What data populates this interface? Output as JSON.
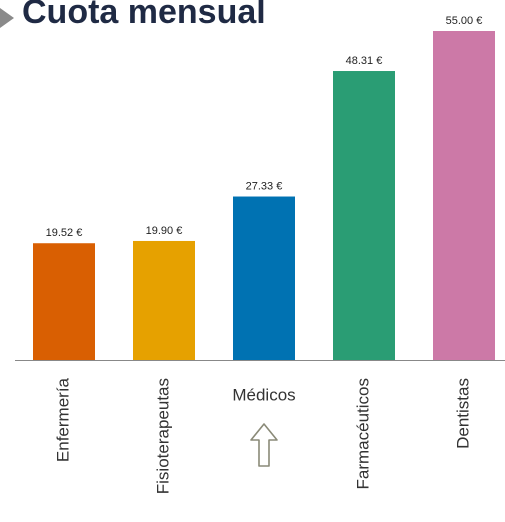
{
  "chart_data": {
    "type": "bar",
    "title": "Cuota mensual",
    "categories": [
      "Enfermería",
      "Fisioterapeutas",
      "Médicos",
      "Farmacéuticos",
      "Dentistas"
    ],
    "values": [
      19.52,
      19.9,
      27.33,
      48.31,
      55.0
    ],
    "value_labels": [
      "19.52 €",
      "19.90 €",
      "27.33 €",
      "48.31 €",
      "55.00 €"
    ],
    "colors": [
      "#d95f02",
      "#e6a100",
      "#0072b2",
      "#2a9d74",
      "#cc79a7"
    ]
  }
}
